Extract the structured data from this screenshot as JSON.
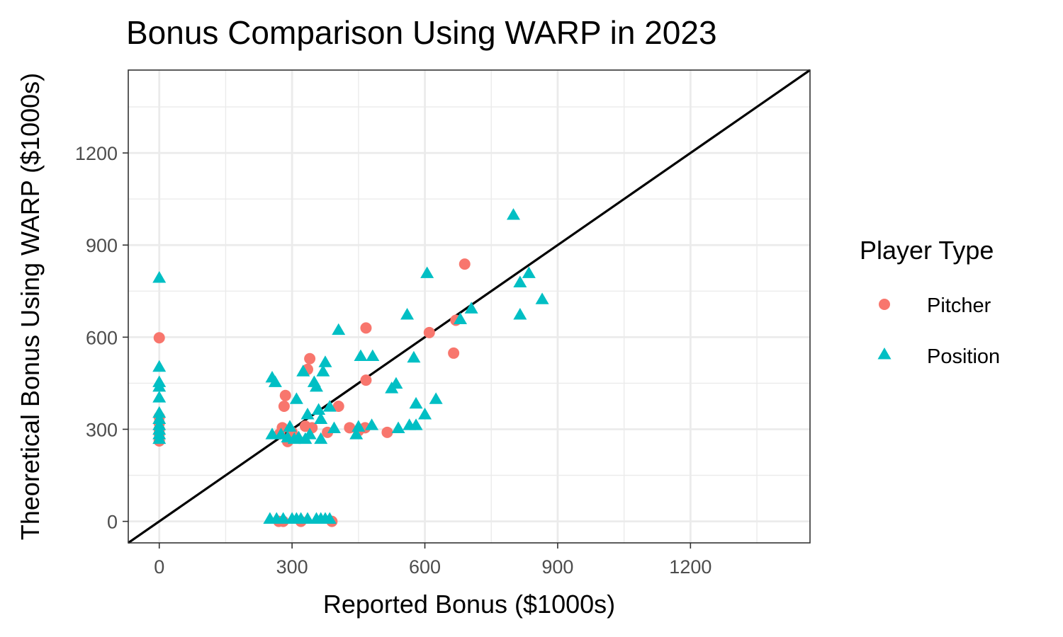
{
  "chart_data": {
    "type": "scatter",
    "title": "Bonus Comparison Using WARP in 2023",
    "xlabel": "Reported Bonus ($1000s)",
    "ylabel": "Theoretical Bonus Using WARP ($1000s)",
    "xlim": [
      -70,
      1470
    ],
    "ylim": [
      -70,
      1470
    ],
    "x_ticks": [
      0,
      300,
      600,
      900,
      1200
    ],
    "y_ticks": [
      0,
      300,
      600,
      900,
      1200
    ],
    "x_tick_labels": [
      "0",
      "300",
      "600",
      "900",
      "1200"
    ],
    "y_tick_labels": [
      "0",
      "300",
      "600",
      "900",
      "1200"
    ],
    "grid": true,
    "reference_line": "y = x",
    "legend": {
      "title": "Player Type",
      "placement": "right",
      "entries": [
        {
          "name": "Pitcher",
          "shape": "circle",
          "color": "#F8766D"
        },
        {
          "name": "Position",
          "shape": "triangle",
          "color": "#00BFC4"
        }
      ]
    },
    "series": [
      {
        "name": "Pitcher",
        "color": "#F8766D",
        "points": [
          [
            0,
            598
          ],
          [
            0,
            340
          ],
          [
            0,
            320
          ],
          [
            0,
            300
          ],
          [
            0,
            285
          ],
          [
            0,
            262
          ],
          [
            270,
            0
          ],
          [
            280,
            0
          ],
          [
            320,
            0
          ],
          [
            390,
            0
          ],
          [
            272,
            285
          ],
          [
            278,
            305
          ],
          [
            282,
            375
          ],
          [
            285,
            410
          ],
          [
            290,
            260
          ],
          [
            300,
            290
          ],
          [
            330,
            310
          ],
          [
            335,
            495
          ],
          [
            340,
            530
          ],
          [
            345,
            305
          ],
          [
            380,
            290
          ],
          [
            405,
            375
          ],
          [
            430,
            305
          ],
          [
            450,
            295
          ],
          [
            465,
            305
          ],
          [
            467,
            630
          ],
          [
            467,
            460
          ],
          [
            515,
            290
          ],
          [
            610,
            615
          ],
          [
            665,
            548
          ],
          [
            670,
            655
          ],
          [
            690,
            838
          ]
        ]
      },
      {
        "name": "Position",
        "color": "#00BFC4",
        "points": [
          [
            0,
            790
          ],
          [
            0,
            500
          ],
          [
            0,
            450
          ],
          [
            0,
            435
          ],
          [
            0,
            400
          ],
          [
            0,
            350
          ],
          [
            0,
            330
          ],
          [
            0,
            310
          ],
          [
            0,
            295
          ],
          [
            0,
            280
          ],
          [
            0,
            265
          ],
          [
            250,
            5
          ],
          [
            265,
            5
          ],
          [
            280,
            5
          ],
          [
            300,
            5
          ],
          [
            310,
            5
          ],
          [
            320,
            5
          ],
          [
            335,
            5
          ],
          [
            355,
            5
          ],
          [
            365,
            5
          ],
          [
            375,
            5
          ],
          [
            385,
            5
          ],
          [
            255,
            280
          ],
          [
            255,
            465
          ],
          [
            262,
            450
          ],
          [
            275,
            280
          ],
          [
            290,
            270
          ],
          [
            295,
            305
          ],
          [
            305,
            265
          ],
          [
            310,
            395
          ],
          [
            315,
            270
          ],
          [
            325,
            485
          ],
          [
            330,
            265
          ],
          [
            335,
            345
          ],
          [
            340,
            280
          ],
          [
            350,
            450
          ],
          [
            355,
            435
          ],
          [
            360,
            360
          ],
          [
            365,
            265
          ],
          [
            365,
            330
          ],
          [
            370,
            485
          ],
          [
            375,
            515
          ],
          [
            385,
            370
          ],
          [
            395,
            300
          ],
          [
            405,
            620
          ],
          [
            445,
            280
          ],
          [
            450,
            305
          ],
          [
            455,
            535
          ],
          [
            480,
            310
          ],
          [
            482,
            535
          ],
          [
            525,
            430
          ],
          [
            535,
            445
          ],
          [
            540,
            300
          ],
          [
            560,
            670
          ],
          [
            565,
            310
          ],
          [
            575,
            530
          ],
          [
            580,
            380
          ],
          [
            580,
            310
          ],
          [
            600,
            345
          ],
          [
            605,
            805
          ],
          [
            625,
            395
          ],
          [
            680,
            655
          ],
          [
            705,
            690
          ],
          [
            800,
            995
          ],
          [
            815,
            775
          ],
          [
            815,
            670
          ],
          [
            835,
            805
          ],
          [
            865,
            720
          ]
        ]
      }
    ]
  }
}
